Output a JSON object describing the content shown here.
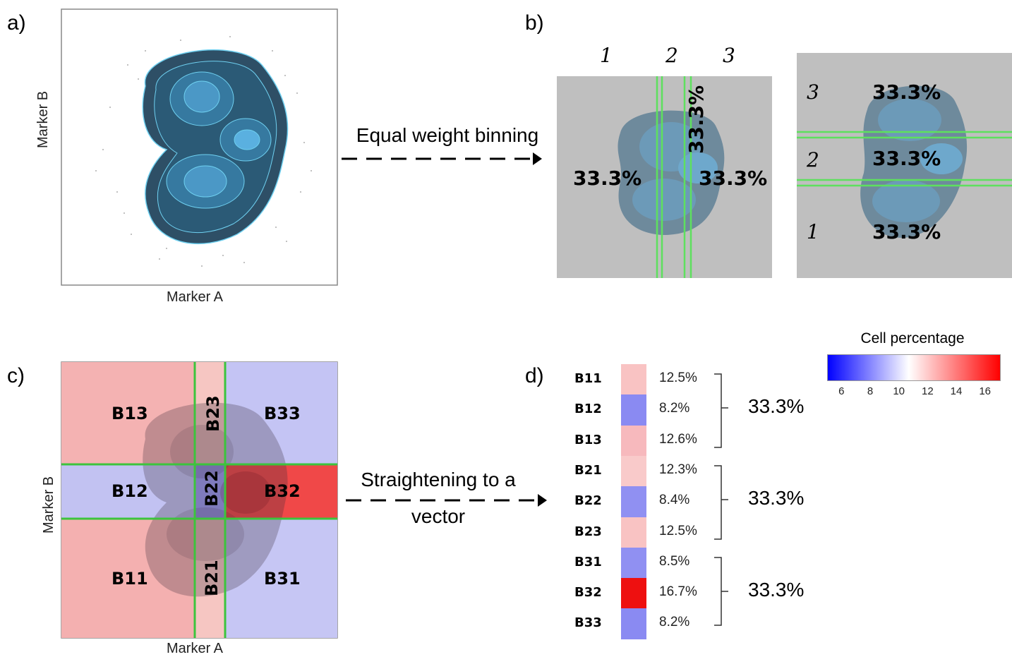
{
  "panel_a": {
    "label": "a)",
    "xlabel": "Marker A",
    "ylabel": "Marker B"
  },
  "arrow_ab": {
    "text": "Equal weight binning"
  },
  "panel_b": {
    "label": "b)",
    "col_indices": [
      "1",
      "2",
      "3"
    ],
    "col_percents": [
      "33.3%",
      "33.3%",
      "33.3%"
    ],
    "row_indices": [
      "3",
      "2",
      "1"
    ],
    "row_percents": [
      "33.3%",
      "33.3%",
      "33.3%"
    ]
  },
  "panel_c": {
    "label": "c)",
    "xlabel": "Marker A",
    "ylabel": "Marker B",
    "bins": [
      {
        "name": "B13",
        "color": "#f4b2b2"
      },
      {
        "name": "B23",
        "color": "#f6c6c2"
      },
      {
        "name": "B33",
        "color": "#c4c4f4"
      },
      {
        "name": "B12",
        "color": "#c2c2f2"
      },
      {
        "name": "B22",
        "color": "#9a9af0"
      },
      {
        "name": "B32",
        "color": "#f04848"
      },
      {
        "name": "B11",
        "color": "#f4b0b0"
      },
      {
        "name": "B21",
        "color": "#f6c6c2"
      },
      {
        "name": "B31",
        "color": "#c6c6f4"
      }
    ]
  },
  "arrow_cd": {
    "line1": "Straightening to a",
    "line2": "vector"
  },
  "panel_d": {
    "label": "d)",
    "rows": [
      {
        "name": "B11",
        "pct": "12.5%",
        "color": "#f9c3c3"
      },
      {
        "name": "B12",
        "pct": "8.2%",
        "color": "#8a8af2"
      },
      {
        "name": "B13",
        "pct": "12.6%",
        "color": "#f7b9bd"
      },
      {
        "name": "B21",
        "pct": "12.3%",
        "color": "#f9caca"
      },
      {
        "name": "B22",
        "pct": "8.4%",
        "color": "#9090f2"
      },
      {
        "name": "B23",
        "pct": "12.5%",
        "color": "#f9c3c3"
      },
      {
        "name": "B31",
        "pct": "8.5%",
        "color": "#9090f2"
      },
      {
        "name": "B32",
        "pct": "16.7%",
        "color": "#ee1010"
      },
      {
        "name": "B33",
        "pct": "8.2%",
        "color": "#8a8af2"
      }
    ],
    "groups": [
      "33.3%",
      "33.3%",
      "33.3%"
    ]
  },
  "colorbar": {
    "title": "Cell percentage",
    "ticks": [
      "6",
      "8",
      "10",
      "12",
      "14",
      "16"
    ],
    "colors": [
      "#0000ff",
      "#ffffff",
      "#ff0000"
    ]
  }
}
